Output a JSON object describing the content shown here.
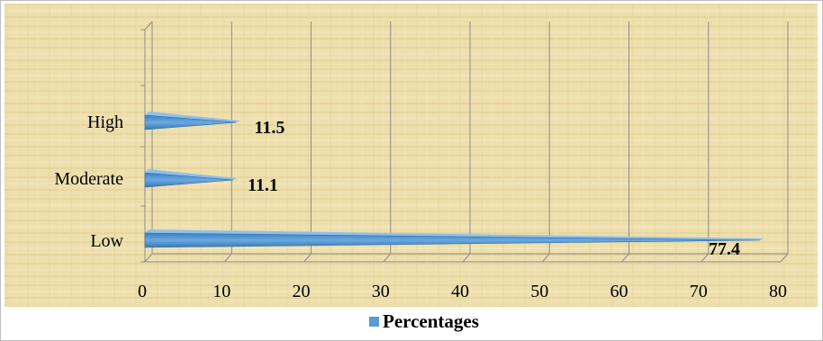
{
  "chart_data": {
    "type": "bar",
    "orientation": "horizontal",
    "categories": [
      "Low",
      "Moderate",
      "High"
    ],
    "series": [
      {
        "name": "Percentages",
        "values": [
          77.4,
          11.1,
          11.5
        ],
        "color": "#5b9bd5"
      }
    ],
    "data_labels": [
      "77.4",
      "11.1",
      "11.5"
    ],
    "xlim": [
      0,
      80
    ],
    "x_ticks": [
      "0",
      "10",
      "20",
      "30",
      "40",
      "50",
      "60",
      "70",
      "80"
    ],
    "grid": true,
    "legend_position": "bottom",
    "title": "",
    "xlabel": "",
    "ylabel": ""
  },
  "colors": {
    "bar": "#5b9bd5",
    "bar_dark": "#2e6ea8",
    "grid": "#8c8c8c",
    "background": "#eedfae"
  }
}
